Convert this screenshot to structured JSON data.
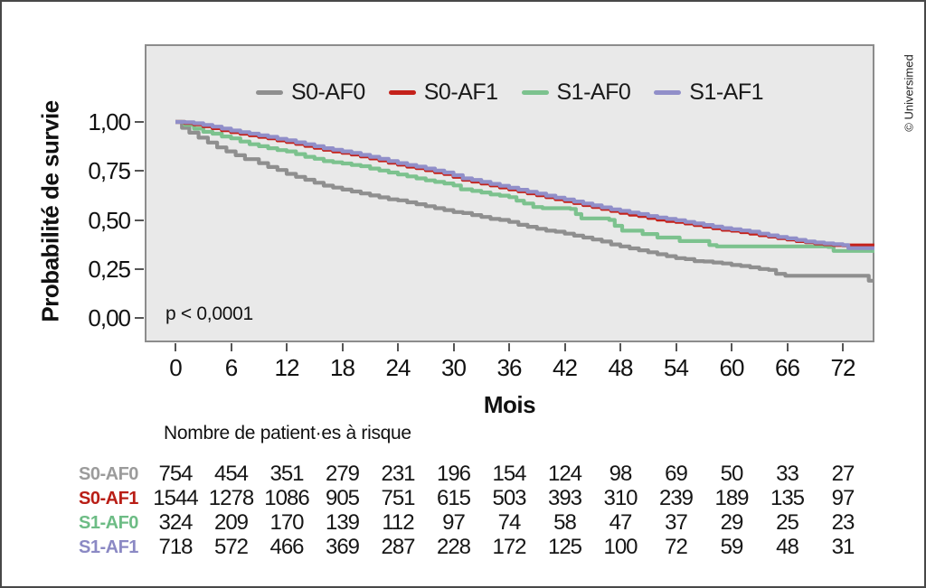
{
  "figure": {
    "credit": "© Universimed",
    "annotation": "p < 0,0001"
  },
  "chart_data": {
    "type": "line",
    "subtype": "kaplan-meier-step",
    "title": "",
    "xlabel": "Mois",
    "ylabel": "Probabilité de survie",
    "xlim": [
      0,
      75.5
    ],
    "ylim": [
      0,
      1.0
    ],
    "grid": false,
    "legend_position": "top-center-inside",
    "annotation": "p < 0,0001",
    "plot_background": "#e9e9e9",
    "x_ticks": [
      0,
      6,
      12,
      18,
      24,
      30,
      36,
      42,
      48,
      54,
      60,
      66,
      72
    ],
    "y_ticks": [
      {
        "label": "1,00",
        "value": 1.0
      },
      {
        "label": "0,75",
        "value": 0.75
      },
      {
        "label": "0,50",
        "value": 0.5
      },
      {
        "label": "0,25",
        "value": 0.25
      },
      {
        "label": "0,00",
        "value": 0.0
      }
    ],
    "series": [
      {
        "name": "S0-AF0",
        "color": "#8f8f8f",
        "points": [
          [
            0,
            1.0
          ],
          [
            0.7,
            0.97
          ],
          [
            1.5,
            0.945
          ],
          [
            2.5,
            0.92
          ],
          [
            3.5,
            0.895
          ],
          [
            4.5,
            0.87
          ],
          [
            5.5,
            0.85
          ],
          [
            6.5,
            0.83
          ],
          [
            7.5,
            0.81
          ],
          [
            9,
            0.79
          ],
          [
            10,
            0.77
          ],
          [
            11,
            0.755
          ],
          [
            12,
            0.735
          ],
          [
            13,
            0.72
          ],
          [
            14,
            0.705
          ],
          [
            15,
            0.69
          ],
          [
            16,
            0.675
          ],
          [
            17,
            0.665
          ],
          [
            18,
            0.655
          ],
          [
            19,
            0.645
          ],
          [
            20,
            0.635
          ],
          [
            21,
            0.625
          ],
          [
            22,
            0.615
          ],
          [
            23,
            0.605
          ],
          [
            24,
            0.6
          ],
          [
            25,
            0.59
          ],
          [
            26,
            0.58
          ],
          [
            27,
            0.57
          ],
          [
            28,
            0.56
          ],
          [
            29,
            0.55
          ],
          [
            30,
            0.54
          ],
          [
            31,
            0.535
          ],
          [
            32,
            0.525
          ],
          [
            33,
            0.515
          ],
          [
            34,
            0.505
          ],
          [
            35,
            0.5
          ],
          [
            36,
            0.49
          ],
          [
            37,
            0.475
          ],
          [
            38,
            0.465
          ],
          [
            39,
            0.455
          ],
          [
            40,
            0.445
          ],
          [
            41,
            0.44
          ],
          [
            42,
            0.43
          ],
          [
            43,
            0.42
          ],
          [
            44,
            0.41
          ],
          [
            45,
            0.4
          ],
          [
            46,
            0.39
          ],
          [
            47,
            0.375
          ],
          [
            48,
            0.365
          ],
          [
            49,
            0.355
          ],
          [
            50,
            0.345
          ],
          [
            51,
            0.335
          ],
          [
            52,
            0.325
          ],
          [
            53,
            0.315
          ],
          [
            54,
            0.305
          ],
          [
            55,
            0.3
          ],
          [
            56,
            0.29
          ],
          [
            57,
            0.288
          ],
          [
            58,
            0.283
          ],
          [
            59,
            0.278
          ],
          [
            60,
            0.27
          ],
          [
            61,
            0.265
          ],
          [
            62,
            0.258
          ],
          [
            63,
            0.25
          ],
          [
            64,
            0.245
          ],
          [
            64.8,
            0.225
          ],
          [
            65.8,
            0.215
          ],
          [
            74.2,
            0.215
          ],
          [
            74.8,
            0.19
          ],
          [
            75.4,
            0.19
          ]
        ]
      },
      {
        "name": "S1-AF0",
        "color": "#7cc28e",
        "points": [
          [
            0,
            1.0
          ],
          [
            1,
            0.985
          ],
          [
            2,
            0.966
          ],
          [
            3,
            0.95
          ],
          [
            4,
            0.94
          ],
          [
            5,
            0.926
          ],
          [
            6,
            0.916
          ],
          [
            7,
            0.9
          ],
          [
            8,
            0.886
          ],
          [
            9,
            0.876
          ],
          [
            10,
            0.866
          ],
          [
            11,
            0.856
          ],
          [
            12,
            0.85
          ],
          [
            13,
            0.836
          ],
          [
            14,
            0.822
          ],
          [
            15,
            0.812
          ],
          [
            16,
            0.8
          ],
          [
            17,
            0.794
          ],
          [
            18,
            0.788
          ],
          [
            19,
            0.78
          ],
          [
            20,
            0.774
          ],
          [
            21,
            0.762
          ],
          [
            22,
            0.752
          ],
          [
            23,
            0.742
          ],
          [
            24,
            0.732
          ],
          [
            25,
            0.722
          ],
          [
            26,
            0.712
          ],
          [
            27,
            0.702
          ],
          [
            28,
            0.694
          ],
          [
            29,
            0.686
          ],
          [
            30,
            0.676
          ],
          [
            30.8,
            0.656
          ],
          [
            32,
            0.648
          ],
          [
            33,
            0.64
          ],
          [
            34,
            0.63
          ],
          [
            35,
            0.624
          ],
          [
            36,
            0.616
          ],
          [
            36.8,
            0.598
          ],
          [
            37.6,
            0.584
          ],
          [
            38.6,
            0.566
          ],
          [
            39.6,
            0.56
          ],
          [
            42.6,
            0.556
          ],
          [
            43.2,
            0.53
          ],
          [
            43.8,
            0.508
          ],
          [
            46.8,
            0.5
          ],
          [
            47.4,
            0.47
          ],
          [
            48.2,
            0.445
          ],
          [
            50.4,
            0.428
          ],
          [
            52,
            0.41
          ],
          [
            54.4,
            0.392
          ],
          [
            57.6,
            0.372
          ],
          [
            58.4,
            0.365
          ],
          [
            70.4,
            0.362
          ],
          [
            71,
            0.342
          ],
          [
            75.4,
            0.342
          ]
        ]
      },
      {
        "name": "S0-AF1",
        "color": "#c4211a",
        "points": [
          [
            0,
            1.0
          ],
          [
            1,
            0.995
          ],
          [
            2,
            0.988
          ],
          [
            3,
            0.978
          ],
          [
            4,
            0.968
          ],
          [
            5,
            0.958
          ],
          [
            6,
            0.948
          ],
          [
            7,
            0.94
          ],
          [
            8,
            0.932
          ],
          [
            9,
            0.924
          ],
          [
            10,
            0.916
          ],
          [
            11,
            0.906
          ],
          [
            12,
            0.898
          ],
          [
            13,
            0.888
          ],
          [
            14,
            0.878
          ],
          [
            15,
            0.868
          ],
          [
            16,
            0.858
          ],
          [
            17,
            0.85
          ],
          [
            18,
            0.843
          ],
          [
            19,
            0.834
          ],
          [
            20,
            0.824
          ],
          [
            21,
            0.814
          ],
          [
            22,
            0.804
          ],
          [
            23,
            0.792
          ],
          [
            24,
            0.782
          ],
          [
            25,
            0.772
          ],
          [
            26,
            0.764
          ],
          [
            27,
            0.754
          ],
          [
            28,
            0.744
          ],
          [
            29,
            0.734
          ],
          [
            30,
            0.72
          ],
          [
            31,
            0.705
          ],
          [
            32,
            0.696
          ],
          [
            33,
            0.686
          ],
          [
            34,
            0.676
          ],
          [
            35,
            0.666
          ],
          [
            36,
            0.656
          ],
          [
            37,
            0.646
          ],
          [
            38,
            0.636
          ],
          [
            39,
            0.626
          ],
          [
            40,
            0.616
          ],
          [
            41,
            0.606
          ],
          [
            42,
            0.596
          ],
          [
            43,
            0.586
          ],
          [
            44,
            0.576
          ],
          [
            45,
            0.566
          ],
          [
            46,
            0.556
          ],
          [
            47,
            0.546
          ],
          [
            48,
            0.536
          ],
          [
            49,
            0.527
          ],
          [
            50,
            0.52
          ],
          [
            51,
            0.51
          ],
          [
            52,
            0.502
          ],
          [
            53,
            0.495
          ],
          [
            54,
            0.49
          ],
          [
            55,
            0.482
          ],
          [
            56,
            0.474
          ],
          [
            57,
            0.466
          ],
          [
            58,
            0.458
          ],
          [
            59,
            0.45
          ],
          [
            60,
            0.445
          ],
          [
            61,
            0.438
          ],
          [
            62,
            0.43
          ],
          [
            63,
            0.422
          ],
          [
            64,
            0.415
          ],
          [
            65,
            0.407
          ],
          [
            66,
            0.4
          ],
          [
            67,
            0.392
          ],
          [
            68,
            0.386
          ],
          [
            69,
            0.38
          ],
          [
            70,
            0.376
          ],
          [
            71,
            0.372
          ],
          [
            72,
            0.37
          ],
          [
            75.4,
            0.37
          ]
        ]
      },
      {
        "name": "S1-AF1",
        "color": "#918fc9",
        "points": [
          [
            0,
            1.0
          ],
          [
            1,
            0.998
          ],
          [
            2,
            0.993
          ],
          [
            3,
            0.985
          ],
          [
            4,
            0.976
          ],
          [
            5,
            0.966
          ],
          [
            6,
            0.956
          ],
          [
            7,
            0.948
          ],
          [
            8,
            0.94
          ],
          [
            9,
            0.932
          ],
          [
            10,
            0.924
          ],
          [
            11,
            0.914
          ],
          [
            12,
            0.906
          ],
          [
            13,
            0.896
          ],
          [
            14,
            0.886
          ],
          [
            15,
            0.876
          ],
          [
            16,
            0.866
          ],
          [
            17,
            0.858
          ],
          [
            18,
            0.85
          ],
          [
            19,
            0.842
          ],
          [
            20,
            0.832
          ],
          [
            21,
            0.822
          ],
          [
            22,
            0.812
          ],
          [
            23,
            0.8
          ],
          [
            24,
            0.79
          ],
          [
            25,
            0.78
          ],
          [
            26,
            0.772
          ],
          [
            27,
            0.762
          ],
          [
            28,
            0.752
          ],
          [
            29,
            0.742
          ],
          [
            30,
            0.728
          ],
          [
            31,
            0.712
          ],
          [
            32,
            0.704
          ],
          [
            33,
            0.694
          ],
          [
            34,
            0.684
          ],
          [
            35,
            0.674
          ],
          [
            36,
            0.664
          ],
          [
            37,
            0.654
          ],
          [
            38,
            0.644
          ],
          [
            39,
            0.634
          ],
          [
            40,
            0.624
          ],
          [
            41,
            0.614
          ],
          [
            42,
            0.604
          ],
          [
            43,
            0.594
          ],
          [
            44,
            0.584
          ],
          [
            45,
            0.574
          ],
          [
            46,
            0.564
          ],
          [
            47,
            0.554
          ],
          [
            48,
            0.546
          ],
          [
            49,
            0.538
          ],
          [
            50,
            0.53
          ],
          [
            51,
            0.52
          ],
          [
            52,
            0.512
          ],
          [
            53,
            0.505
          ],
          [
            54,
            0.498
          ],
          [
            55,
            0.49
          ],
          [
            56,
            0.482
          ],
          [
            57,
            0.474
          ],
          [
            58,
            0.466
          ],
          [
            59,
            0.458
          ],
          [
            60,
            0.452
          ],
          [
            61,
            0.446
          ],
          [
            62,
            0.44
          ],
          [
            63,
            0.43
          ],
          [
            64,
            0.421
          ],
          [
            65,
            0.413
          ],
          [
            66,
            0.406
          ],
          [
            67,
            0.398
          ],
          [
            68,
            0.39
          ],
          [
            69,
            0.385
          ],
          [
            70,
            0.38
          ],
          [
            71,
            0.376
          ],
          [
            72,
            0.372
          ],
          [
            72.6,
            0.356
          ],
          [
            75.4,
            0.356
          ]
        ]
      }
    ],
    "legend_order": [
      "S0-AF0",
      "S0-AF1",
      "S1-AF0",
      "S1-AF1"
    ],
    "legend_colors": {
      "S0-AF0": "#8f8f8f",
      "S0-AF1": "#c4211a",
      "S1-AF0": "#7cc28e",
      "S1-AF1": "#918fc9"
    },
    "risk_table": {
      "title": "Nombre de patient·es à risque",
      "months": [
        0,
        6,
        12,
        18,
        24,
        30,
        36,
        42,
        48,
        54,
        60,
        66,
        72
      ],
      "rows": [
        {
          "name": "S0-AF0",
          "color": "#9b9b9b",
          "values": [
            754,
            454,
            351,
            279,
            231,
            196,
            154,
            124,
            98,
            69,
            50,
            33,
            27
          ]
        },
        {
          "name": "S0-AF1",
          "color": "#b91e16",
          "values": [
            1544,
            1278,
            1086,
            905,
            751,
            615,
            503,
            393,
            310,
            239,
            189,
            135,
            97
          ]
        },
        {
          "name": "S1-AF0",
          "color": "#6dbc85",
          "values": [
            324,
            209,
            170,
            139,
            112,
            97,
            74,
            58,
            47,
            37,
            29,
            25,
            23
          ]
        },
        {
          "name": "S1-AF1",
          "color": "#8b89c4",
          "values": [
            718,
            572,
            466,
            369,
            287,
            228,
            172,
            125,
            100,
            72,
            59,
            48,
            31
          ]
        }
      ]
    }
  }
}
